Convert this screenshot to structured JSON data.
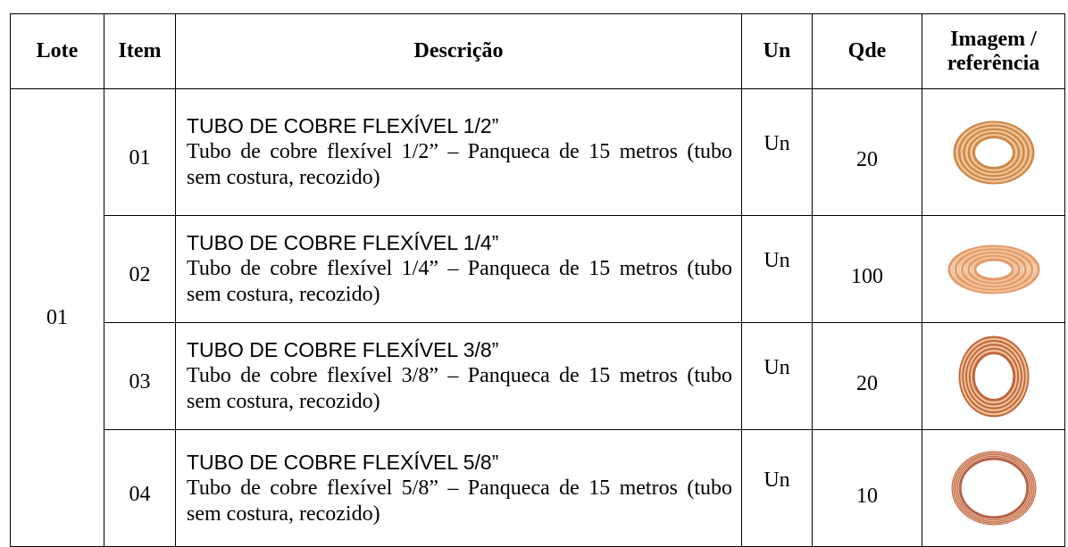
{
  "table": {
    "headers": [
      "Lote",
      "Item",
      "Descrição",
      "Un",
      "Qde",
      "Imagem / referência"
    ],
    "lote": "01",
    "rows": [
      {
        "item": "01",
        "title": "TUBO DE COBRE FLEXÍVEL 1/2”",
        "description": "Tubo de cobre flexível 1/2” – Panqueca de 15 metros (tubo sem costura, recozido)",
        "un": "Un",
        "qde": "20"
      },
      {
        "item": "02",
        "title": "TUBO DE COBRE FLEXÍVEL 1/4”",
        "description": "Tubo de cobre flexível 1/4” – Panqueca de 15 metros (tubo sem costura, recozido)",
        "un": "Un",
        "qde": "100"
      },
      {
        "item": "03",
        "title": "TUBO DE COBRE FLEXÍVEL 3/8”",
        "description": "Tubo de cobre flexível 3/8” – Panqueca de 15 metros (tubo sem costura, recozido)",
        "un": "Un",
        "qde": "20"
      },
      {
        "item": "04",
        "title": "TUBO DE COBRE FLEXÍVEL 5/8”",
        "description": "Tubo de cobre flexível 5/8” – Panqueca de 15 metros (tubo sem costura, recozido)",
        "un": "Un",
        "qde": "10"
      }
    ]
  }
}
